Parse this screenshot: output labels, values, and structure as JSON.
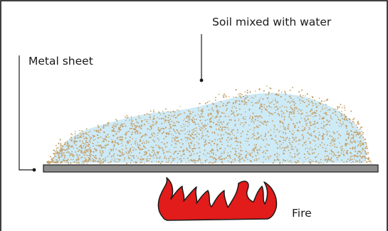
{
  "labels": {
    "soil_water": "Soil mixed with water",
    "metal_sheet": "Metal sheet",
    "fire": "Fire"
  },
  "colors": {
    "frame": "#000000",
    "water": "#cdeaf7",
    "soil_dots": "#c4a16b",
    "sheet_fill": "#8c8c8c",
    "fire_fill": "#e21b1b",
    "fire_stroke": "#1a1a1a"
  }
}
